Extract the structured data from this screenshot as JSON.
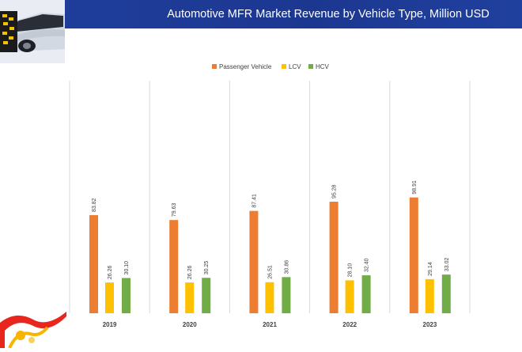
{
  "header": {
    "title": "Automotive MFR Market Revenue by Vehicle Type, Million USD"
  },
  "colors": {
    "header_band": "#1f3f9e",
    "passenger": "#ed7d31",
    "lcv": "#ffc000",
    "hcv": "#70ad47",
    "divider": "#d9d9d9"
  },
  "chart_data": {
    "type": "bar",
    "title": "Automotive MFR Market Revenue by Vehicle Type, Million USD",
    "categories": [
      "2019",
      "2020",
      "2021",
      "2022",
      "2023"
    ],
    "series": [
      {
        "name": "Passenger Vehicle",
        "values": [
          83.82,
          79.63,
          87.41,
          95.28,
          98.91
        ],
        "color": "#ed7d31"
      },
      {
        "name": "LCV",
        "values": [
          26.26,
          26.26,
          26.51,
          28.1,
          29.14
        ],
        "color": "#ffc000"
      },
      {
        "name": "HCV",
        "values": [
          30.1,
          30.25,
          30.86,
          32.4,
          33.02
        ],
        "color": "#70ad47"
      }
    ],
    "value_labels": [
      [
        "83.82",
        "26.26",
        "30.10"
      ],
      [
        "79.63",
        "26.26",
        "30.25"
      ],
      [
        "87.41",
        "26.51",
        "30.86"
      ],
      [
        "95.28",
        "28.10",
        "32.40"
      ],
      [
        "98.91",
        "29.14",
        "33.02"
      ]
    ],
    "ylim": [
      0,
      110
    ],
    "grid": false,
    "category_dividers": true,
    "legend_position": "top-center",
    "xlabel": "",
    "ylabel": ""
  }
}
